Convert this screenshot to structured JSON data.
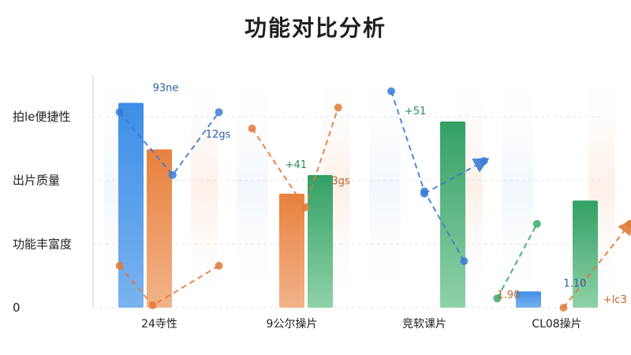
{
  "title": "功能对比分析",
  "chart_data": {
    "type": "bar",
    "title": "功能对比分析",
    "xlabel": "",
    "ylabel": "",
    "categories": [
      "24寺性",
      "9公尔操片",
      "竞软课片",
      "CL08操片"
    ],
    "y_ticks": [
      "0",
      "功能丰富度",
      "出片质量",
      "拍le便捷性"
    ],
    "ylim": [
      0,
      100
    ],
    "grid": true,
    "series": [
      {
        "color": "#4a90e2",
        "values": [
          88,
          0,
          0,
          7
        ]
      },
      {
        "color": "#e8894a",
        "values": [
          68,
          49,
          0,
          0
        ]
      },
      {
        "color": "#3aa96b",
        "values": [
          0,
          57,
          80,
          46
        ]
      }
    ],
    "lines": [
      {
        "color": "#3a7bd5",
        "dashed": true,
        "values": [
          84,
          57,
          84
        ],
        "x": [
          -0.3,
          0.1,
          0.45
        ]
      },
      {
        "color": "#e07b39",
        "dashed": true,
        "values": [
          77,
          43,
          86
        ],
        "x": [
          0.7,
          1.1,
          1.35
        ]
      },
      {
        "color": "#e07b39",
        "dashed": true,
        "values": [
          18,
          1,
          18
        ],
        "x": [
          -0.3,
          -0.05,
          0.45
        ]
      },
      {
        "color": "#3a7bd5",
        "dashed": true,
        "values": [
          93,
          50,
          20
        ],
        "x": [
          1.75,
          2.0,
          2.3
        ]
      },
      {
        "color": "#3a7bd5",
        "dashed": true,
        "values": [
          49,
          63
        ],
        "x": [
          2.0,
          2.45
        ]
      },
      {
        "color": "#e07b39",
        "dashed": true,
        "values": [
          0,
          36
        ],
        "x": [
          3.05,
          3.55
        ]
      },
      {
        "color": "#3aa96b",
        "dashed": true,
        "values": [
          4,
          36
        ],
        "x": [
          2.55,
          2.85
        ]
      }
    ],
    "data_labels": [
      {
        "text": "93ne",
        "color": "#2b5fa8",
        "x": -0.05,
        "y": 93
      },
      {
        "text": "12gs",
        "color": "#2b5fa8",
        "x": 0.35,
        "y": 73
      },
      {
        "text": "+41",
        "color": "#2e8b57",
        "x": 0.95,
        "y": 60
      },
      {
        "text": "3gs",
        "color": "#c0622a",
        "x": 1.3,
        "y": 53
      },
      {
        "text": "+51",
        "color": "#2e8b57",
        "x": 1.85,
        "y": 83
      },
      {
        "text": "1.90",
        "color": "#c0622a",
        "x": 2.55,
        "y": 4
      },
      {
        "text": "1.10",
        "color": "#2b5fa8",
        "x": 3.05,
        "y": 9
      },
      {
        "text": "+lc3",
        "color": "#c0622a",
        "x": 3.35,
        "y": 2
      }
    ]
  }
}
